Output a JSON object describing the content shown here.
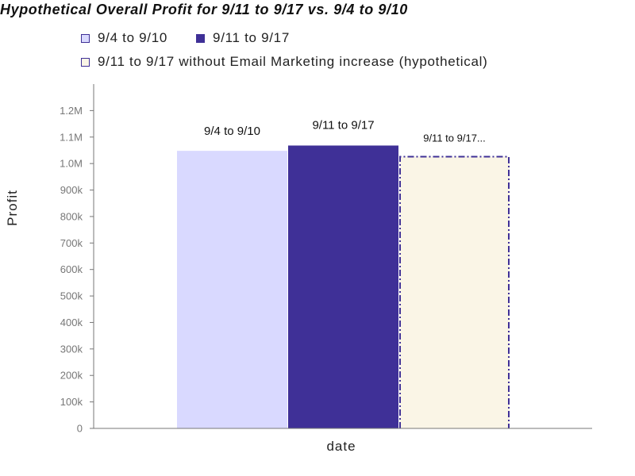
{
  "chart_data": {
    "type": "bar",
    "title": "Hypothetical Overall Profit for 9/11 to 9/17 vs. 9/4 to 9/10",
    "xlabel": "date",
    "ylabel": "Profit",
    "ylim": [
      0,
      1300000
    ],
    "yticks": [
      {
        "value": 0,
        "label": "0"
      },
      {
        "value": 100000,
        "label": "100k"
      },
      {
        "value": 200000,
        "label": "200k"
      },
      {
        "value": 300000,
        "label": "300k"
      },
      {
        "value": 400000,
        "label": "400k"
      },
      {
        "value": 500000,
        "label": "500k"
      },
      {
        "value": 600000,
        "label": "600k"
      },
      {
        "value": 700000,
        "label": "700k"
      },
      {
        "value": 800000,
        "label": "800k"
      },
      {
        "value": 900000,
        "label": "900k"
      },
      {
        "value": 1000000,
        "label": "1.0M"
      },
      {
        "value": 1100000,
        "label": "1.1M"
      },
      {
        "value": 1200000,
        "label": "1.2M"
      }
    ],
    "grid": false,
    "legend_position": "top",
    "series": [
      {
        "name": "9/4 to 9/10",
        "value": 1048000,
        "bar_label": "9/4 to 9/10",
        "fill": "#d9d9ff",
        "stroke": "#d9d9ff",
        "style": "solid"
      },
      {
        "name": "9/11 to 9/17",
        "value": 1068000,
        "bar_label": "9/11 to 9/17",
        "fill": "#3f3097",
        "stroke": "#3f3097",
        "style": "solid"
      },
      {
        "name": "9/11 to 9/17 without Email Marketing increase (hypothetical)",
        "value": 1026000,
        "bar_label": "9/11 to 9/17...",
        "fill": "#faf5e6",
        "stroke": "#3f3097",
        "style": "dash-dot"
      }
    ]
  }
}
